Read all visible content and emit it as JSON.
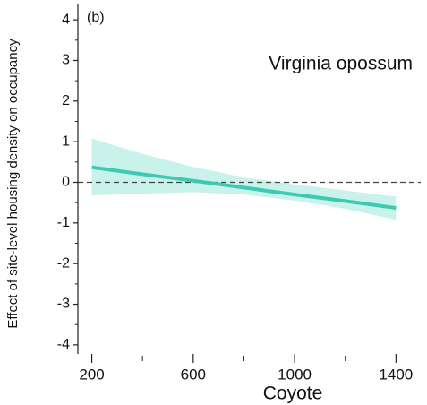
{
  "chart_data": {
    "type": "line",
    "panel_label": "(b)",
    "title": "Virginia opossum",
    "x_label": "Coyote",
    "y_label": "Effect of site-level housing density on occupancy",
    "x": [
      200,
      400,
      600,
      800,
      1000,
      1200,
      1400
    ],
    "series": [
      {
        "color": "#3ccbb2",
        "band_color": "#c8f2ea",
        "values": [
          0.37,
          0.2,
          0.04,
          -0.13,
          -0.3,
          -0.46,
          -0.63
        ],
        "upper": [
          1.08,
          0.7,
          0.38,
          0.12,
          -0.05,
          -0.2,
          -0.35
        ],
        "lower": [
          -0.32,
          -0.28,
          -0.24,
          -0.3,
          -0.45,
          -0.65,
          -0.92
        ]
      }
    ],
    "reference_line": 0,
    "xlim": [
      145,
      1480
    ],
    "ylim": [
      -4.4,
      4.4
    ],
    "xticks": [
      200,
      600,
      1000,
      1400
    ],
    "xminor": [
      400,
      800,
      1200
    ],
    "yticks": [
      -4,
      -3,
      -2,
      -1,
      0,
      1,
      2,
      3,
      4
    ],
    "yminor": [
      -3.5,
      -2.5,
      -1.5,
      -0.5,
      0.5,
      1.5,
      2.5,
      3.5
    ],
    "grid": false
  }
}
